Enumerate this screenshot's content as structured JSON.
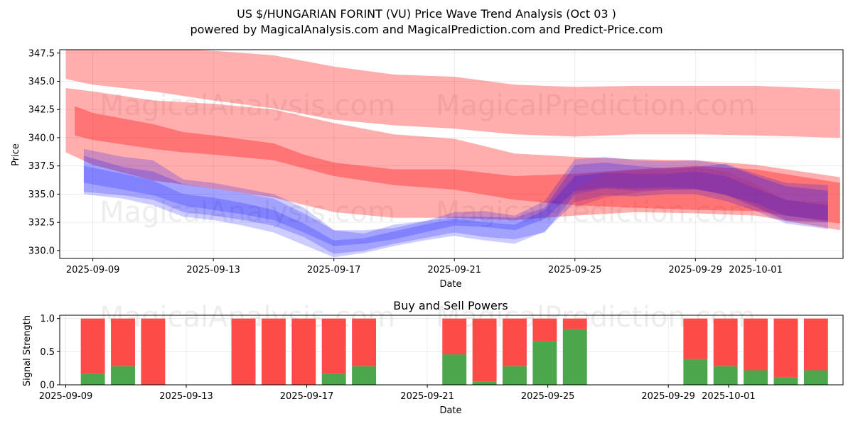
{
  "header": {
    "title": "US $/HUNGARIAN FORINT (VU) Price Wave Trend Analysis (Oct 03 )",
    "subtitle": "powered by MagicalAnalysis.com and MagicalPrediction.com and Predict-Price.com"
  },
  "watermarks": [
    "MagicalAnalysis.com",
    "MagicalPrediction.com"
  ],
  "chart_data": [
    {
      "type": "area",
      "title": "",
      "xlabel": "Date",
      "ylabel": "Price",
      "ylim": [
        329.3,
        347.8
      ],
      "xlim_days": [
        -1.1,
        24.9
      ],
      "x_ticks": [
        "2025-09-09",
        "2025-09-13",
        "2025-09-17",
        "2025-09-21",
        "2025-09-25",
        "2025-09-29",
        "2025-10-01"
      ],
      "x_tick_days": [
        0,
        4,
        8,
        12,
        16,
        20,
        22
      ],
      "y_ticks": [
        330.0,
        332.5,
        335.0,
        337.5,
        340.0,
        342.5,
        345.0,
        347.5
      ],
      "y_tick_labels": [
        "330.0",
        "332.5",
        "335.0",
        "337.5",
        "340.0",
        "342.5",
        "345.0",
        "347.5"
      ],
      "grid": true,
      "colors": {
        "red_band": "#ff0000",
        "blue_band": "#0000ff",
        "purple_band": "#b0307a"
      },
      "red_bands": [
        {
          "name": "upper envelope",
          "x": [
            -0.9,
            0,
            2,
            4,
            6,
            8,
            10,
            12,
            14,
            16,
            18,
            20,
            22,
            24.8
          ],
          "upper": [
            348.5,
            348.3,
            348.0,
            347.7,
            347.3,
            346.3,
            345.6,
            345.4,
            344.7,
            344.5,
            344.6,
            344.6,
            344.6,
            344.3
          ],
          "lower": [
            345.2,
            344.7,
            344.1,
            343.3,
            342.6,
            341.6,
            341.1,
            340.8,
            340.3,
            340.1,
            340.3,
            340.3,
            340.2,
            340.0
          ]
        },
        {
          "name": "middle envelope",
          "x": [
            -0.9,
            0,
            2,
            4,
            6,
            8,
            10,
            12,
            14,
            16,
            18,
            20,
            22,
            24.8
          ],
          "upper": [
            344.4,
            344.1,
            343.3,
            343.0,
            342.5,
            341.3,
            340.3,
            339.9,
            338.6,
            338.3,
            338.1,
            338.0,
            337.6,
            336.5
          ],
          "lower": [
            338.7,
            337.6,
            336.2,
            335.5,
            334.7,
            333.4,
            332.9,
            332.9,
            332.7,
            333.1,
            333.4,
            333.3,
            333.1,
            331.8
          ]
        },
        {
          "name": "lower envelope",
          "x": [
            -0.6,
            0,
            2,
            3,
            4,
            6,
            7,
            8,
            10,
            12,
            14,
            16,
            18,
            20,
            22,
            24.8
          ],
          "upper": [
            342.8,
            342.2,
            341.2,
            340.5,
            340.2,
            339.5,
            338.5,
            337.8,
            337.2,
            337.2,
            336.6,
            336.8,
            337.2,
            337.5,
            337.2,
            336.0
          ],
          "lower": [
            340.2,
            339.8,
            339.0,
            338.7,
            338.5,
            338.0,
            337.3,
            336.6,
            335.8,
            335.4,
            334.5,
            334.0,
            333.8,
            333.6,
            333.5,
            332.4
          ]
        }
      ],
      "blue_bands": [
        {
          "name": "wave 1",
          "x": [
            -0.3,
            1,
            2,
            3,
            4,
            5,
            6,
            7,
            8,
            9,
            10,
            11,
            12,
            13,
            14,
            15,
            16,
            17,
            18,
            19,
            20,
            21,
            22,
            23,
            24.4
          ],
          "upper": [
            339.0,
            338.3,
            338.0,
            336.3,
            336.0,
            335.5,
            335.0,
            333.8,
            331.8,
            331.5,
            332.3,
            332.6,
            333.0,
            333.0,
            332.9,
            333.8,
            337.6,
            337.8,
            337.5,
            337.3,
            337.4,
            337.7,
            336.8,
            336.0,
            335.8
          ],
          "lower": [
            335.2,
            334.9,
            334.5,
            333.4,
            333.1,
            332.7,
            332.2,
            331.2,
            329.7,
            330.0,
            330.6,
            331.1,
            331.6,
            331.2,
            331.0,
            331.6,
            335.0,
            335.5,
            335.3,
            335.4,
            335.4,
            335.0,
            333.9,
            332.7,
            332.5
          ]
        },
        {
          "name": "wave 2",
          "x": [
            -0.3,
            1,
            2,
            3,
            4,
            5,
            6,
            7,
            8,
            9,
            10,
            11,
            12,
            13,
            14,
            15,
            16,
            17,
            18,
            19,
            20,
            21,
            22,
            23,
            24.4
          ],
          "upper": [
            337.5,
            336.8,
            336.2,
            335.0,
            334.7,
            334.2,
            333.6,
            332.4,
            330.9,
            331.1,
            331.7,
            332.3,
            332.8,
            332.5,
            332.3,
            333.6,
            336.6,
            336.9,
            336.8,
            336.8,
            337.0,
            336.6,
            335.5,
            334.5,
            334.0
          ],
          "lower": [
            335.0,
            334.6,
            334.0,
            333.0,
            332.7,
            332.2,
            331.6,
            330.5,
            329.4,
            329.8,
            330.4,
            330.9,
            331.3,
            330.9,
            330.6,
            331.7,
            334.3,
            334.9,
            334.8,
            335.0,
            335.0,
            334.4,
            333.5,
            332.4,
            331.9
          ]
        },
        {
          "name": "wave 3",
          "x": [
            -0.3,
            1,
            2,
            3,
            4,
            5,
            6,
            7,
            8,
            9,
            10,
            11,
            12,
            13,
            14,
            15,
            16,
            17,
            18,
            19,
            20,
            21,
            22,
            23,
            24.4
          ],
          "upper": [
            338.4,
            337.4,
            337.0,
            335.9,
            335.5,
            335.1,
            334.6,
            333.3,
            331.8,
            331.8,
            332.0,
            332.6,
            333.4,
            333.5,
            333.1,
            334.4,
            338.1,
            338.3,
            338.0,
            337.9,
            338.0,
            337.6,
            336.6,
            335.7,
            335.3
          ],
          "lower": [
            336.0,
            335.4,
            334.9,
            334.0,
            333.6,
            333.2,
            332.7,
            331.6,
            330.4,
            330.6,
            331.0,
            331.6,
            332.2,
            332.1,
            331.8,
            332.8,
            335.3,
            335.6,
            335.5,
            335.6,
            335.5,
            334.9,
            334.2,
            333.1,
            332.7
          ]
        }
      ],
      "purple_band": {
        "name": "overlap",
        "x": [
          16,
          17,
          18,
          19,
          20,
          21,
          22,
          23,
          24.4
        ],
        "upper": [
          335.5,
          336.9,
          337.1,
          337.2,
          337.4,
          337.0,
          335.9,
          334.4,
          334.3
        ],
        "lower": [
          333.8,
          334.7,
          335.1,
          335.4,
          335.5,
          334.9,
          333.8,
          332.6,
          332.5
        ]
      }
    },
    {
      "type": "bar",
      "title": "Buy and Sell Powers",
      "xlabel": "Date",
      "ylabel": "Signal Strength",
      "ylim": [
        0,
        1.05
      ],
      "xlim_days": [
        -1.1,
        24.9
      ],
      "x_ticks": [
        "2025-09-09",
        "2025-09-13",
        "2025-09-17",
        "2025-09-21",
        "2025-09-25",
        "2025-09-29",
        "2025-10-01"
      ],
      "x_tick_days": [
        -0.9,
        3.1,
        7.1,
        11.1,
        15.1,
        19.1,
        21.1
      ],
      "y_ticks": [
        0.0,
        0.5,
        1.0
      ],
      "y_tick_labels": [
        "0.0",
        "0.5",
        "1.0"
      ],
      "grid": true,
      "colors": {
        "buy": "#4ca64c",
        "sell": "#ff4a4a"
      },
      "series": [
        {
          "name": "buy",
          "days": [
            0,
            1,
            2,
            5,
            6,
            7,
            8,
            9,
            12,
            13,
            14,
            15,
            16,
            20,
            21,
            22,
            23,
            24
          ],
          "values": [
            0.17,
            0.28,
            0.0,
            0.0,
            0.0,
            0.0,
            0.17,
            0.28,
            0.46,
            0.05,
            0.28,
            0.66,
            0.84,
            0.39,
            0.28,
            0.22,
            0.11,
            0.22
          ]
        },
        {
          "name": "sell",
          "days": [
            0,
            1,
            2,
            5,
            6,
            7,
            8,
            9,
            12,
            13,
            14,
            15,
            16,
            20,
            21,
            22,
            23,
            24
          ],
          "values": [
            0.83,
            0.72,
            1.0,
            1.0,
            1.0,
            1.0,
            0.83,
            0.72,
            0.54,
            0.95,
            0.72,
            0.34,
            0.16,
            0.61,
            0.72,
            0.78,
            0.89,
            0.78
          ]
        }
      ]
    }
  ]
}
